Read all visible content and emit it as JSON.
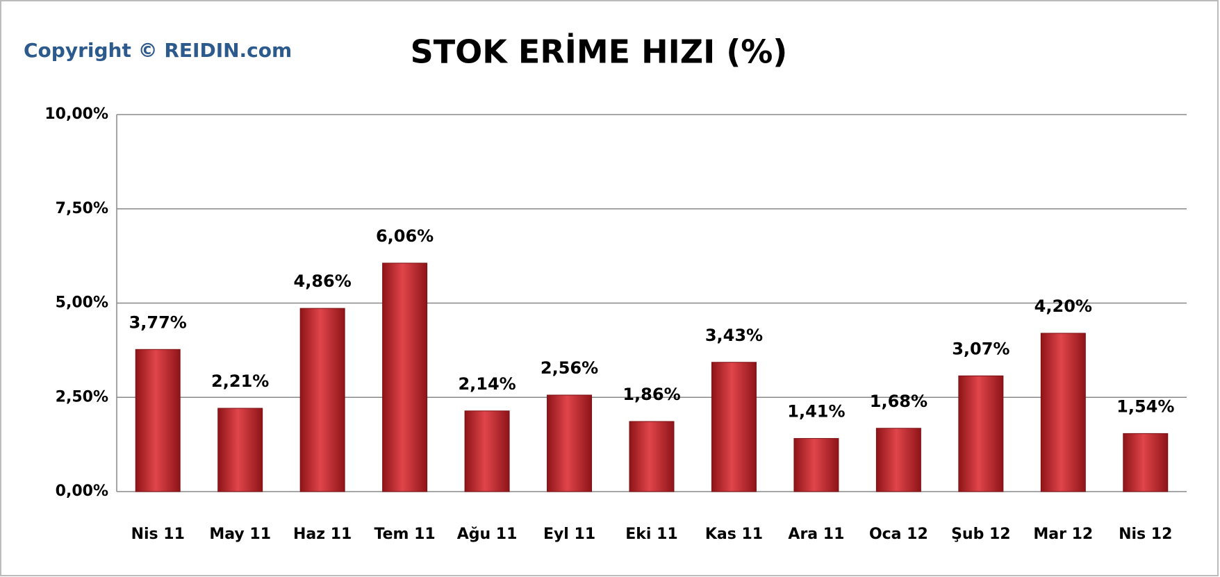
{
  "chart_data": {
    "type": "bar",
    "title": "STOK ERİME HIZI (%)",
    "copyright": "Copyright © REIDIN.com",
    "categories": [
      "Nis 11",
      "May 11",
      "Haz 11",
      "Tem 11",
      "Ağu 11",
      "Eyl 11",
      "Eki 11",
      "Kas 11",
      "Ara 11",
      "Oca 12",
      "Şub 12",
      "Mar 12",
      "Nis 12"
    ],
    "values": [
      3.77,
      2.21,
      4.86,
      6.06,
      2.14,
      2.56,
      1.86,
      3.43,
      1.41,
      1.68,
      3.07,
      4.2,
      1.54
    ],
    "value_labels": [
      "3,77%",
      "2,21%",
      "4,86%",
      "6,06%",
      "2,14%",
      "2,56%",
      "1,86%",
      "3,43%",
      "1,41%",
      "1,68%",
      "3,07%",
      "4,20%",
      "1,54%"
    ],
    "color": "#c0262b",
    "ylim": [
      0,
      10
    ],
    "yticks": [
      {
        "value": 0,
        "label": "0,00%"
      },
      {
        "value": 2.5,
        "label": "2,50%"
      },
      {
        "value": 5,
        "label": "5,00%"
      },
      {
        "value": 7.5,
        "label": "7,50%"
      },
      {
        "value": 10,
        "label": "10,00%"
      }
    ],
    "grid": true
  }
}
